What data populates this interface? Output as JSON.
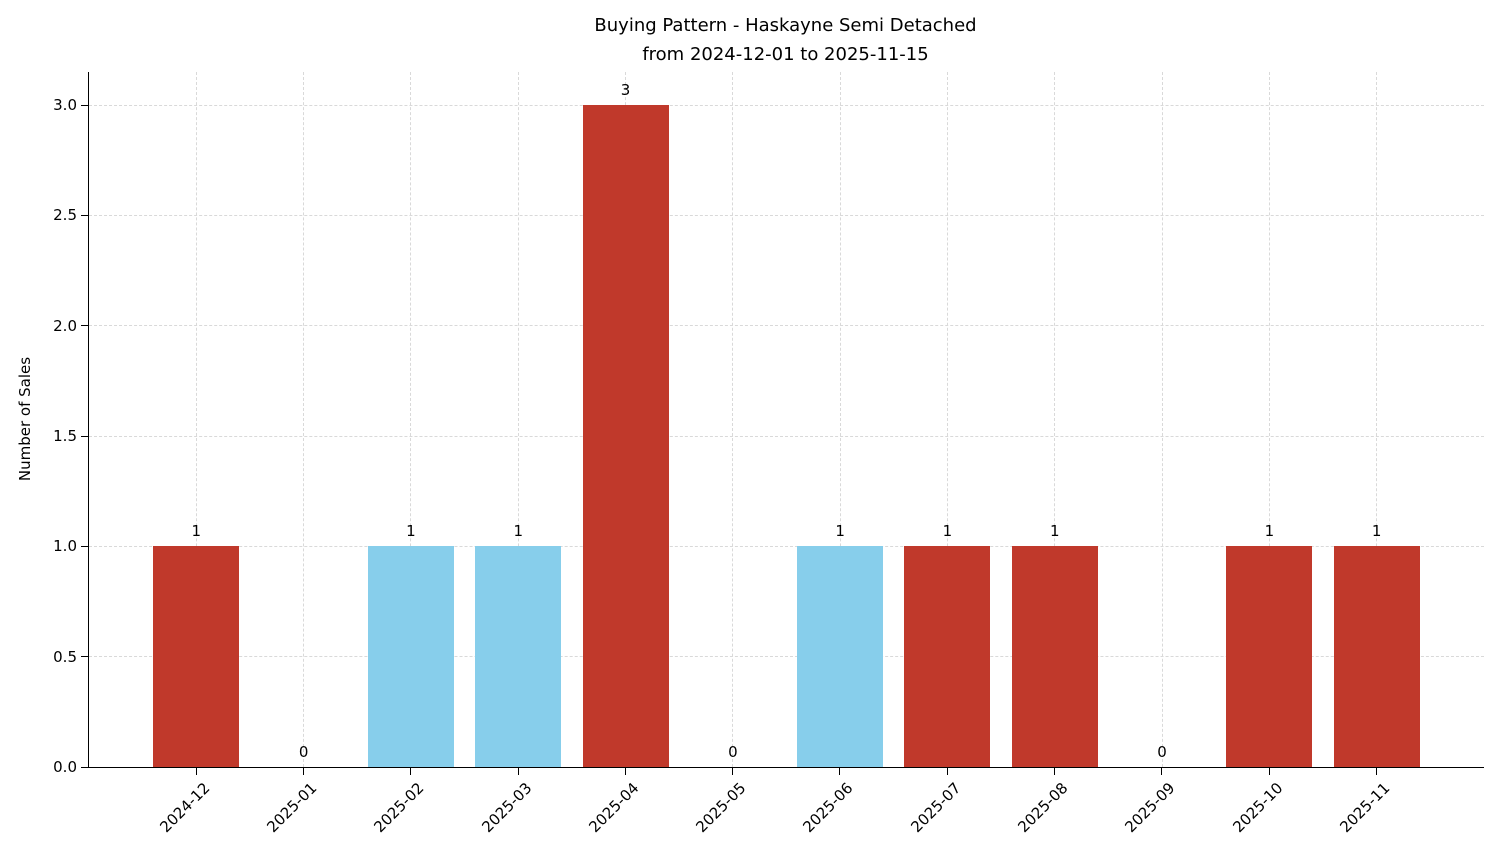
{
  "chart_data": {
    "type": "bar",
    "title": "Buying Pattern - Haskayne Semi Detached",
    "subtitle": "from 2024-12-01 to 2025-11-15",
    "xlabel": "",
    "ylabel": "Number of Sales",
    "categories": [
      "2024-12",
      "2025-01",
      "2025-02",
      "2025-03",
      "2025-04",
      "2025-05",
      "2025-06",
      "2025-07",
      "2025-08",
      "2025-09",
      "2025-10",
      "2025-11"
    ],
    "values": [
      1,
      0,
      1,
      1,
      3,
      0,
      1,
      1,
      1,
      0,
      1,
      1
    ],
    "value_labels": [
      "1",
      "0",
      "1",
      "1",
      "3",
      "0",
      "1",
      "1",
      "1",
      "0",
      "1",
      "1"
    ],
    "bar_colors": [
      "#c0392b",
      null,
      "#87ceeb",
      "#87ceeb",
      "#c0392b",
      null,
      "#87ceeb",
      "#c0392b",
      "#c0392b",
      null,
      "#c0392b",
      "#c0392b"
    ],
    "yticks": [
      0.0,
      0.5,
      1.0,
      1.5,
      2.0,
      2.5,
      3.0
    ],
    "ytick_labels": [
      "0.0",
      "0.5",
      "1.0",
      "1.5",
      "2.0",
      "2.5",
      "3.0"
    ],
    "ylim": [
      0,
      3.15
    ],
    "grid": true,
    "legend": "none",
    "colors": {
      "red": "#c0392b",
      "blue": "#87ceeb",
      "grid": "#d9d9d9",
      "axis": "#000000",
      "background": "#ffffff"
    }
  }
}
